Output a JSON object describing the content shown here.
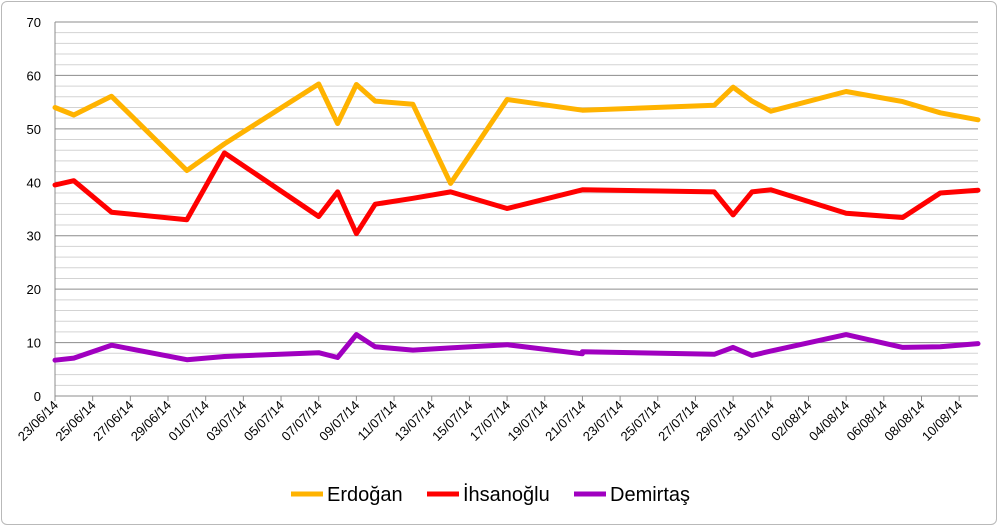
{
  "chart_data": {
    "type": "line",
    "title": "",
    "xlabel": "",
    "ylabel": "",
    "ylim": [
      0,
      70
    ],
    "yticks": [
      0,
      10,
      20,
      30,
      40,
      50,
      60,
      70
    ],
    "grid": "horizontal major and minor",
    "legend_position": "bottom",
    "x_labels": [
      "23/06/14",
      "25/06/14",
      "27/06/14",
      "29/06/14",
      "01/07/14",
      "03/07/14",
      "05/07/14",
      "07/07/14",
      "09/07/14",
      "11/07/14",
      "13/07/14",
      "15/07/14",
      "17/07/14",
      "19/07/14",
      "21/07/14",
      "23/07/14",
      "25/07/14",
      "27/07/14",
      "29/07/14",
      "31/07/14",
      "02/08/14",
      "04/08/14",
      "06/08/14",
      "08/08/14",
      "10/08/14"
    ],
    "series": [
      {
        "name": "Erdoğan",
        "color": "#FFB300",
        "points": [
          [
            "23/06/14",
            54.0
          ],
          [
            "24/06/14",
            52.6
          ],
          [
            "26/06/14",
            56.1
          ],
          [
            "30/06/14",
            42.2
          ],
          [
            "02/07/14",
            47.2
          ],
          [
            "07/07/14",
            58.4
          ],
          [
            "08/07/14",
            51.0
          ],
          [
            "09/07/14",
            58.3
          ],
          [
            "10/07/14",
            55.2
          ],
          [
            "12/07/14",
            54.6
          ],
          [
            "14/07/14",
            39.8
          ],
          [
            "17/07/14",
            55.5
          ],
          [
            "21/07/14",
            53.5
          ],
          [
            "28/07/14",
            54.4
          ],
          [
            "29/07/14",
            57.8
          ],
          [
            "30/07/14",
            55.2
          ],
          [
            "31/07/14",
            53.3
          ],
          [
            "04/08/14",
            57.0
          ],
          [
            "07/08/14",
            55.1
          ],
          [
            "09/08/14",
            53.0
          ],
          [
            "11/08/14",
            51.7
          ]
        ]
      },
      {
        "name": "İhsanoğlu",
        "color": "#FF0000",
        "points": [
          [
            "23/06/14",
            39.5
          ],
          [
            "24/06/14",
            40.3
          ],
          [
            "26/06/14",
            34.4
          ],
          [
            "30/06/14",
            33.0
          ],
          [
            "02/07/14",
            45.5
          ],
          [
            "07/07/14",
            33.6
          ],
          [
            "08/07/14",
            38.2
          ],
          [
            "09/07/14",
            30.4
          ],
          [
            "10/07/14",
            35.9
          ],
          [
            "12/07/14",
            37.0
          ],
          [
            "14/07/14",
            38.2
          ],
          [
            "17/07/14",
            35.1
          ],
          [
            "21/07/14",
            38.6
          ],
          [
            "28/07/14",
            38.2
          ],
          [
            "29/07/14",
            33.9
          ],
          [
            "30/07/14",
            38.2
          ],
          [
            "31/07/14",
            38.6
          ],
          [
            "04/08/14",
            34.2
          ],
          [
            "07/08/14",
            33.4
          ],
          [
            "09/08/14",
            38.0
          ],
          [
            "11/08/14",
            38.5
          ]
        ]
      },
      {
        "name": "Demirtaş",
        "color": "#A000C0",
        "points": [
          [
            "23/06/14",
            6.7
          ],
          [
            "24/06/14",
            7.1
          ],
          [
            "26/06/14",
            9.5
          ],
          [
            "30/06/14",
            6.8
          ],
          [
            "02/07/14",
            7.4
          ],
          [
            "07/07/14",
            8.1
          ],
          [
            "08/07/14",
            7.2
          ],
          [
            "09/07/14",
            11.5
          ],
          [
            "10/07/14",
            9.2
          ],
          [
            "12/07/14",
            8.6
          ],
          [
            "14/07/14",
            9.0
          ],
          [
            "17/07/14",
            9.6
          ],
          [
            "21/07/14",
            7.9
          ],
          [
            "21/07/14",
            8.3
          ],
          [
            "28/07/14",
            7.8
          ],
          [
            "29/07/14",
            9.1
          ],
          [
            "30/07/14",
            7.6
          ],
          [
            "31/07/14",
            8.4
          ],
          [
            "04/08/14",
            11.5
          ],
          [
            "07/08/14",
            9.1
          ],
          [
            "09/08/14",
            9.2
          ],
          [
            "11/08/14",
            9.8
          ]
        ]
      }
    ]
  }
}
